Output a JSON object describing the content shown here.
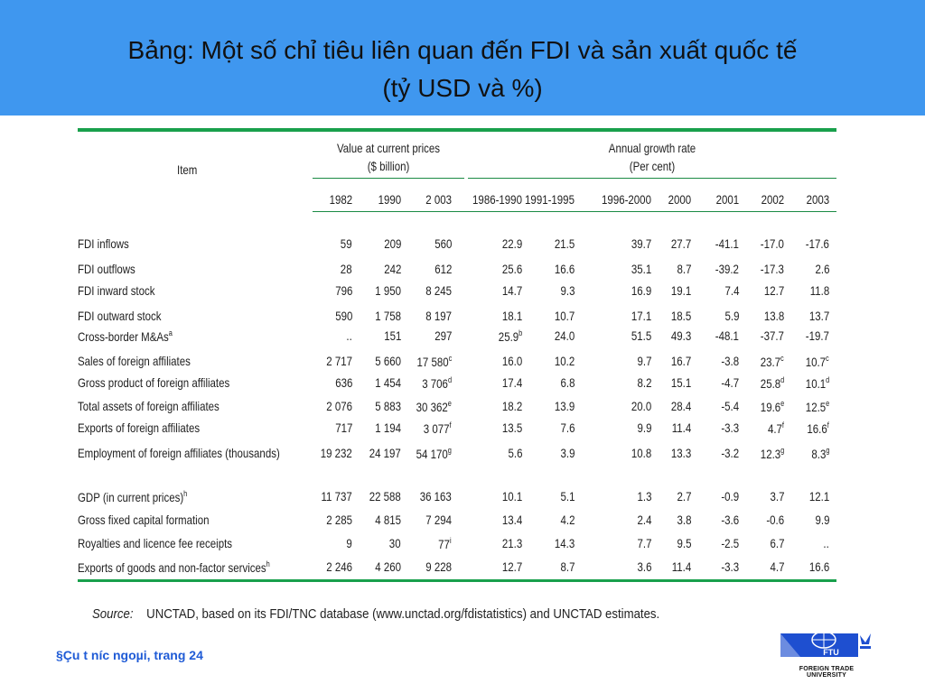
{
  "title": {
    "line1": "Bảng: Một số chỉ tiêu liên quan đến FDI và sản xuất quốc tế",
    "line2": "(tỷ USD và %)"
  },
  "table": {
    "item_header": "Item",
    "value_header": [
      "Value at current prices",
      "($ billion)"
    ],
    "growth_header": [
      "Annual growth rate",
      "(Per cent)"
    ],
    "years": [
      "1982",
      "1990",
      "2 003",
      "1986-1990",
      "1991-1995",
      "1996-2000",
      "2000",
      "2001",
      "2002",
      "2003"
    ],
    "group1": [
      {
        "label": "FDI inflows",
        "values": [
          "59",
          "209",
          "560",
          "22.9",
          "21.5",
          "39.7",
          "27.7",
          "-41.1",
          "-17.0",
          "-17.6"
        ]
      },
      {
        "label": "FDI outflows",
        "values": [
          "28",
          "242",
          "612",
          "25.6",
          "16.6",
          "35.1",
          "8.7",
          "-39.2",
          "-17.3",
          "2.6"
        ]
      },
      {
        "label": "FDI inward stock",
        "values": [
          "796",
          "1 950",
          "8 245",
          "14.7",
          "9.3",
          "16.9",
          "19.1",
          "7.4",
          "12.7",
          "11.8"
        ]
      },
      {
        "label": "FDI outward stock",
        "values": [
          "590",
          "1 758",
          "8 197",
          "18.1",
          "10.7",
          "17.1",
          "18.5",
          "5.9",
          "13.8",
          "13.7"
        ]
      },
      {
        "label": "Cross-border M&As",
        "label_sup": "a",
        "values": [
          "..",
          "151",
          "297",
          "25.9",
          "24.0",
          "51.5",
          "49.3",
          "-48.1",
          "-37.7",
          "-19.7"
        ],
        "sups": [
          "",
          "",
          "",
          "b",
          "",
          "",
          "",
          "",
          "",
          ""
        ]
      },
      {
        "label": "Sales of foreign affiliates",
        "values": [
          "2 717",
          "5 660",
          "17 580",
          "16.0",
          "10.2",
          "9.7",
          "16.7",
          "-3.8",
          "23.7",
          "10.7"
        ],
        "sups": [
          "",
          "",
          "c",
          "",
          "",
          "",
          "",
          "",
          "c",
          "c"
        ]
      },
      {
        "label": "Gross product of foreign affiliates",
        "values": [
          "636",
          "1 454",
          "3 706",
          "17.4",
          "6.8",
          "8.2",
          "15.1",
          "-4.7",
          "25.8",
          "10.1"
        ],
        "sups": [
          "",
          "",
          "d",
          "",
          "",
          "",
          "",
          "",
          "d",
          "d"
        ]
      },
      {
        "label": "Total assets of foreign affiliates",
        "values": [
          "2 076",
          "5 883",
          "30 362",
          "18.2",
          "13.9",
          "20.0",
          "28.4",
          "-5.4",
          "19.6",
          "12.5"
        ],
        "sups": [
          "",
          "",
          "e",
          "",
          "",
          "",
          "",
          "",
          "e",
          "e"
        ]
      },
      {
        "label": "Exports of foreign affiliates",
        "values": [
          "717",
          "1 194",
          "3 077",
          "13.5",
          "7.6",
          "9.9",
          "11.4",
          "-3.3",
          "4.7",
          "16.6"
        ],
        "sups": [
          "",
          "",
          "f",
          "",
          "",
          "",
          "",
          "",
          "f",
          "f"
        ]
      },
      {
        "label": "Employment of foreign affiliates (thousands)",
        "values": [
          "19 232",
          "24 197",
          "54 170",
          "5.6",
          "3.9",
          "10.8",
          "13.3",
          "-3.2",
          "12.3",
          "8.3"
        ],
        "sups": [
          "",
          "",
          "g",
          "",
          "",
          "",
          "",
          "",
          "g",
          "g"
        ]
      }
    ],
    "group2": [
      {
        "label": "GDP (in current prices)",
        "label_sup": "h",
        "values": [
          "11 737",
          "22 588",
          "36 163",
          "10.1",
          "5.1",
          "1.3",
          "2.7",
          "-0.9",
          "3.7",
          "12.1"
        ]
      },
      {
        "label": "Gross fixed capital formation",
        "values": [
          "2 285",
          "4 815",
          "7 294",
          "13.4",
          "4.2",
          "2.4",
          "3.8",
          "-3.6",
          "-0.6",
          "9.9"
        ]
      },
      {
        "label": "Royalties and licence fee receipts",
        "values": [
          "9",
          "30",
          "77",
          "21.3",
          "14.3",
          "7.7",
          "9.5",
          "-2.5",
          "6.7",
          ".."
        ],
        "sups": [
          "",
          "",
          "i",
          "",
          "",
          "",
          "",
          "",
          "",
          ""
        ]
      },
      {
        "label": "Exports of goods and non-factor services",
        "label_sup": "h",
        "values": [
          "2 246",
          "4 260",
          "9 228",
          "12.7",
          "8.7",
          "3.6",
          "11.4",
          "-3.3",
          "4.7",
          "16.6"
        ]
      }
    ]
  },
  "source": {
    "label": "Source:",
    "text": "UNCTAD, based on its FDI/TNC database (www.unctad.org/fdistatistics) and UNCTAD estimates."
  },
  "footer": "§Çu t­ níc ngoµi, trang 24",
  "logo": {
    "text": "FTU",
    "caption": "FOREIGN TRADE UNIVERSITY"
  },
  "colors": {
    "banner": "#3f97ef",
    "rule": "#19a04c",
    "footer_text": "#1f5bd6",
    "logo": "#1e4fd0"
  }
}
